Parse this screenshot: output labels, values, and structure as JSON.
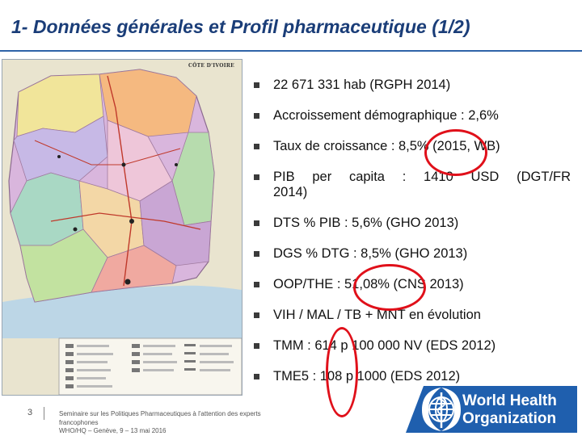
{
  "slide": {
    "title": "1- Données générales et Profil pharmaceutique (1/2)",
    "page_number": "3",
    "footer_lines": [
      "Seminaire sur les Politiques Pharmaceutiques à l'attention des experts",
      "francophones",
      "WHO/HQ – Genève, 9 – 13 mai 2016"
    ]
  },
  "map": {
    "header_label": "CÔTE D'IVOIRE"
  },
  "bullets": [
    {
      "text": "22 671 331 hab (RGPH 2014)"
    },
    {
      "text": "Accroissement démographique : 2,6%"
    },
    {
      "text": "Taux de croissance : 8,5% (2015, WB)"
    },
    {
      "line1": "PIB per capita : 1410 USD (DGT/FR",
      "line2": "2014)"
    },
    {
      "text": "DTS % PIB : 5,6% (GHO 2013)"
    },
    {
      "text": "DGS % DTG : 8,5% (GHO 2013)"
    },
    {
      "text": "OOP/THE : 51,08% (CNS 2013)"
    },
    {
      "text": "VIH / MAL / TB + MNT en évolution"
    },
    {
      "text": "TMM : 614 p 100 000 NV (EDS 2012)"
    },
    {
      "text": "TME5 : 108 p 1000 (EDS 2012)"
    }
  ],
  "logo": {
    "line1": "World Health",
    "line2": "Organization",
    "bg_color": "#1f5fae"
  },
  "colors": {
    "title": "#1a3d78",
    "highlight_oval": "#e0101a"
  }
}
